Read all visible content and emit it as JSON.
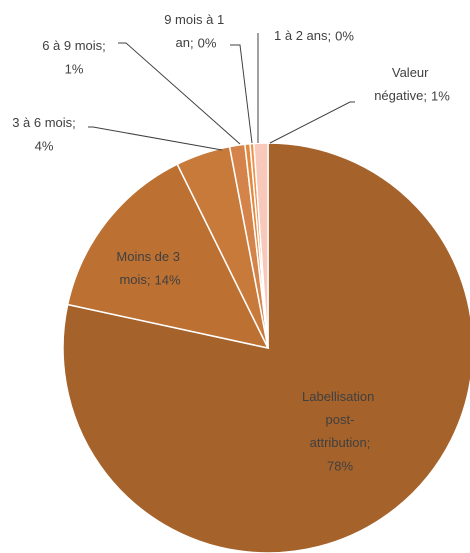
{
  "chart_data": {
    "type": "pie",
    "categories": [
      "Labellisation post-attribution",
      "Moins de 3 mois",
      "3 à 6 mois",
      "6 à 9 mois",
      "9 mois à 1 an",
      "1 à 2 ans",
      "Valeur négative"
    ],
    "values": [
      78.4,
      14.3,
      4.3,
      1.2,
      0.4,
      0.3,
      1.1
    ],
    "value_labels": [
      "78%",
      "14%",
      "4%",
      "1%",
      "0%",
      "0%",
      "1%"
    ],
    "label_separator": ";",
    "colors": [
      "#a5622a",
      "#bc7032",
      "#c87a3a",
      "#d4834a",
      "#e08a3f",
      "#f0904e",
      "#f8c8ba"
    ]
  }
}
